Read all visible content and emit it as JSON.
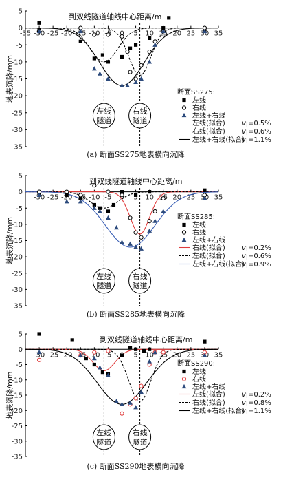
{
  "chart_data": [
    {
      "type": "scatter",
      "title": "断面SS275:",
      "xlabel": "到双线隧道轴线中心距离/m",
      "ylabel": "地表沉降/mm",
      "caption": "(a) 断面SS275地表横向沉降",
      "xlim": [
        -35,
        35
      ],
      "ylim": [
        -35,
        5
      ],
      "xticks": [
        -35,
        -30,
        -25,
        -20,
        -15,
        -10,
        -5,
        0,
        5,
        10,
        15,
        20,
        25,
        30,
        35
      ],
      "yticks": [
        5,
        0,
        -5,
        -10,
        -15,
        -20,
        -25,
        -30,
        -35
      ],
      "tunnels": [
        {
          "x": -6.5,
          "label": "左线隧道"
        },
        {
          "x": 6.5,
          "label": "右线隧道"
        }
      ],
      "series": [
        {
          "name": "左线",
          "marker": "square",
          "color": "#000000",
          "points": [
            [
              -30,
              1.5
            ],
            [
              -30,
              -0.5
            ],
            [
              -15,
              -4
            ],
            [
              -10,
              -9
            ],
            [
              -7,
              -8
            ],
            [
              -5,
              -10
            ],
            [
              0,
              -8.5
            ],
            [
              3,
              -6
            ],
            [
              5,
              -5
            ],
            [
              10,
              -3
            ],
            [
              15,
              0
            ],
            [
              17,
              3
            ],
            [
              30,
              -0.5
            ]
          ]
        },
        {
          "name": "右线",
          "marker": "circle",
          "color": "#000000",
          "points": [
            [
              -30,
              -1
            ],
            [
              -15,
              0
            ],
            [
              -10,
              -2
            ],
            [
              -5,
              -2
            ],
            [
              0,
              -2.5
            ],
            [
              2,
              -7
            ],
            [
              3,
              -13
            ],
            [
              5,
              -15
            ],
            [
              7,
              -11
            ],
            [
              10,
              -7
            ],
            [
              12,
              -4
            ],
            [
              15,
              -1
            ],
            [
              30,
              0
            ]
          ]
        },
        {
          "name": "左线+右线",
          "marker": "triangle",
          "color": "#2c4a7c",
          "points": [
            [
              -30,
              -1
            ],
            [
              -15,
              -1
            ],
            [
              -10,
              -12
            ],
            [
              -8,
              -13.5
            ],
            [
              -5,
              -15
            ],
            [
              0,
              -17
            ],
            [
              2,
              -17
            ],
            [
              5,
              -16
            ],
            [
              7,
              -15
            ],
            [
              10,
              -10
            ],
            [
              12,
              -5
            ],
            [
              15,
              -1
            ],
            [
              30,
              -1
            ]
          ]
        }
      ],
      "fits": [
        {
          "name": "左线(拟合)",
          "style": "dashed",
          "color": "#000000",
          "vl": "0.5%",
          "center": -6.5,
          "smax": 10,
          "i": 5
        },
        {
          "name": "右线(拟合)",
          "style": "dashed",
          "color": "#000000",
          "vl": "0.6%",
          "center": 6.5,
          "smax": 14,
          "i": 4
        },
        {
          "name": "左线+右线(拟合)",
          "style": "solid",
          "color": "#000000",
          "vl": "1.1%",
          "center": 0,
          "smax": 17,
          "i": 8
        }
      ]
    },
    {
      "type": "scatter",
      "title": "断面SS285:",
      "xlabel": "到双线隧道轴线中心距离/m",
      "ylabel": "地表沉降/mm",
      "caption": "(b)  断面SS285地表横向沉降",
      "xlim": [
        -35,
        35
      ],
      "ylim": [
        -35,
        5
      ],
      "xticks": [
        -30,
        -25,
        -20,
        -15,
        -10,
        -5,
        0,
        5,
        10,
        15,
        20,
        25,
        30,
        35
      ],
      "yticks": [
        5,
        0,
        -5,
        -10,
        -15,
        -20,
        -25,
        -30,
        -35
      ],
      "tunnels": [
        {
          "x": -6.5,
          "label": "左线隧道"
        },
        {
          "x": 6.5,
          "label": "右线隧道"
        }
      ],
      "series": [
        {
          "name": "左线",
          "marker": "square",
          "color": "#000000",
          "points": [
            [
              -30,
              -0.5
            ],
            [
              -20,
              -1
            ],
            [
              -15,
              -2
            ],
            [
              -10,
              -4
            ],
            [
              -8,
              -5
            ],
            [
              -5,
              -6
            ],
            [
              -3,
              -4
            ],
            [
              0,
              0
            ],
            [
              5,
              -1
            ],
            [
              10,
              0
            ],
            [
              30,
              0.5
            ]
          ]
        },
        {
          "name": "右线",
          "marker": "circle",
          "color": "#000000",
          "points": [
            [
              -30,
              0
            ],
            [
              -20,
              0
            ],
            [
              -15,
              -1
            ],
            [
              -10,
              2
            ],
            [
              -5,
              0
            ],
            [
              0,
              -1
            ],
            [
              3,
              -8
            ],
            [
              5,
              -12.5
            ],
            [
              7,
              -14
            ],
            [
              10,
              -9
            ],
            [
              12,
              -6
            ],
            [
              15,
              -2
            ],
            [
              30,
              -1
            ]
          ]
        },
        {
          "name": "左线+右线",
          "marker": "triangle",
          "color": "#2c4a7c",
          "points": [
            [
              -30,
              -1
            ],
            [
              -20,
              -3
            ],
            [
              -15,
              -3
            ],
            [
              -10,
              -5
            ],
            [
              -8,
              -6
            ],
            [
              -5,
              -8
            ],
            [
              -2,
              -11
            ],
            [
              0,
              -15.5
            ],
            [
              3,
              -16
            ],
            [
              5,
              -17
            ],
            [
              7,
              -17.5
            ],
            [
              10,
              -12
            ],
            [
              12,
              -9
            ],
            [
              15,
              -6
            ],
            [
              30,
              -2
            ]
          ]
        }
      ],
      "fits": [
        {
          "name": "右线(拟合)",
          "style": "solid",
          "color": "#e03c3c",
          "vl": "0.2%",
          "center": 6.5,
          "smax": 13,
          "i": 3.5
        },
        {
          "name": "左线(拟合)",
          "style": "dashed",
          "color": "#000000",
          "vl": "0.6%",
          "center": -6.5,
          "smax": 5,
          "i": 5
        },
        {
          "name": "左线+右线(拟合)",
          "style": "solid",
          "color": "#3a5fb5",
          "vl": "0.9%",
          "center": 3,
          "smax": 17,
          "i": 9
        }
      ]
    },
    {
      "type": "scatter",
      "title": "断面SS290:",
      "xlabel": "到双线隧道轴线中心距离/m",
      "ylabel": "地表沉降/mm",
      "caption": "(c) 断面SS290地表横向沉降",
      "xlim": [
        -35,
        35
      ],
      "ylim": [
        -35,
        5
      ],
      "xticks": [
        -30,
        -25,
        -20,
        -15,
        -10,
        -5,
        0,
        5,
        10,
        15,
        20,
        25,
        30,
        35
      ],
      "yticks": [
        5,
        0,
        -5,
        -10,
        -15,
        -20,
        -25,
        -30,
        -35
      ],
      "tunnels": [
        {
          "x": -6.5,
          "label": "左线隧道"
        },
        {
          "x": 6.5,
          "label": "右线隧道"
        }
      ],
      "series": [
        {
          "name": "左线",
          "marker": "square",
          "color": "#000000",
          "points": [
            [
              -30,
              5
            ],
            [
              -18,
              3
            ],
            [
              -13,
              -3
            ],
            [
              -10,
              -5
            ],
            [
              -7,
              -7.5
            ],
            [
              -5,
              -8
            ],
            [
              0,
              -2
            ],
            [
              3,
              0.5
            ],
            [
              5,
              0
            ],
            [
              8,
              -0.5
            ],
            [
              10,
              0
            ],
            [
              30,
              2.5
            ]
          ]
        },
        {
          "name": "右线",
          "marker": "circle",
          "color": "#e03c3c",
          "points": [
            [
              -30,
              -3.5
            ],
            [
              -15,
              -2
            ],
            [
              -10,
              -1
            ],
            [
              -5,
              -0.5
            ],
            [
              0,
              -21
            ],
            [
              3,
              -18
            ],
            [
              5,
              -16
            ],
            [
              7,
              -12
            ],
            [
              10,
              -5
            ],
            [
              12,
              -1
            ],
            [
              15,
              -1
            ],
            [
              30,
              -1
            ]
          ]
        },
        {
          "name": "左线+右线",
          "marker": "triangle",
          "color": "#2c4a7c",
          "points": [
            [
              -30,
              -1
            ],
            [
              -15,
              -2
            ],
            [
              -10,
              -3
            ],
            [
              -8,
              -6
            ],
            [
              -5,
              -8.5
            ],
            [
              -2,
              -17
            ],
            [
              0,
              -18
            ],
            [
              3,
              -17.5
            ],
            [
              5,
              -19
            ],
            [
              7,
              -14
            ],
            [
              10,
              -4
            ],
            [
              12,
              -1
            ],
            [
              30,
              -2
            ]
          ]
        }
      ],
      "fits": [
        {
          "name": "左线(拟合)",
          "style": "solid",
          "color": "#e03c3c",
          "vl": "0.2%",
          "center": -6.5,
          "smax": 7,
          "i": 4
        },
        {
          "name": "右线(拟合)",
          "style": "dashed",
          "color": "#000000",
          "vl": "0.8%",
          "center": 6.5,
          "smax": 17,
          "i": 4
        },
        {
          "name": "左线+右线(拟合)",
          "style": "solid",
          "color": "#000000",
          "vl": "1.1%",
          "center": 0,
          "smax": 18,
          "i": 9
        }
      ]
    }
  ]
}
